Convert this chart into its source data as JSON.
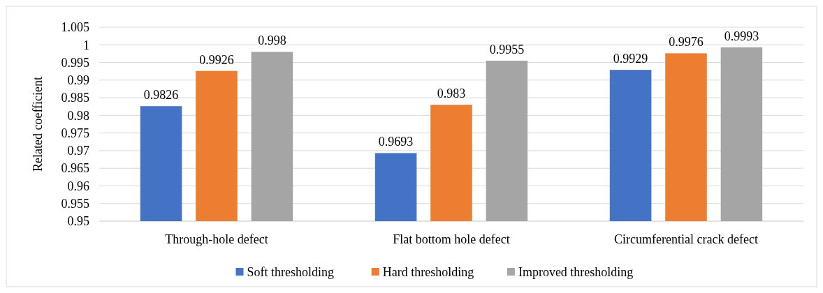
{
  "chart_data": {
    "type": "bar",
    "ylabel": "Related coefficient",
    "categories": [
      "Through-hole defect",
      "Flat bottom hole defect",
      "Circumferential crack defect"
    ],
    "series": [
      {
        "name": "Soft thresholding",
        "color": "#4472c4",
        "values": [
          0.9826,
          0.9693,
          0.9929
        ]
      },
      {
        "name": "Hard thresholding",
        "color": "#ed7d31",
        "values": [
          0.9926,
          0.983,
          0.9976
        ]
      },
      {
        "name": "Improved thresholding",
        "color": "#a5a5a5",
        "values": [
          0.998,
          0.9955,
          0.9993
        ]
      }
    ],
    "ylim": [
      0.95,
      1.005
    ],
    "yticks": [
      0.95,
      0.955,
      0.96,
      0.965,
      0.97,
      0.975,
      0.98,
      0.985,
      0.99,
      0.995,
      1,
      1.005
    ],
    "grid": "y",
    "legend": "bottom",
    "data_labels": true
  }
}
